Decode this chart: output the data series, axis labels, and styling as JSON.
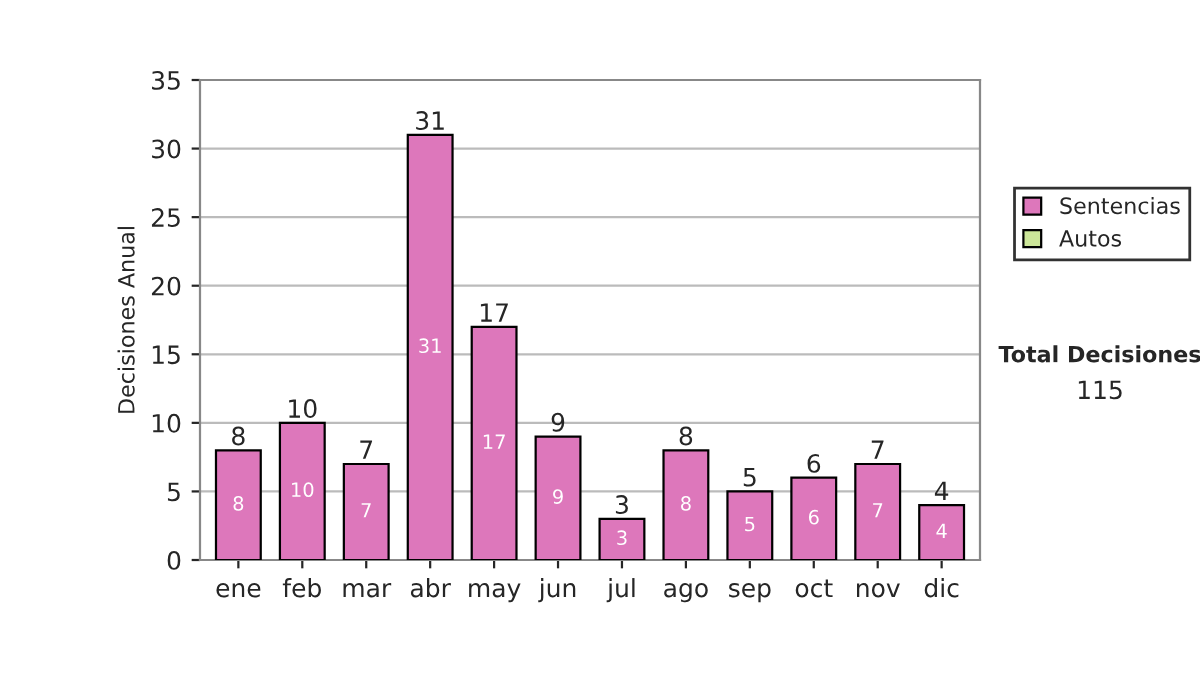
{
  "chart_data": {
    "type": "bar",
    "stacked": true,
    "ylabel": "Decisiones Anual",
    "categories": [
      "ene",
      "feb",
      "mar",
      "abr",
      "may",
      "jun",
      "jul",
      "ago",
      "sep",
      "oct",
      "nov",
      "dic"
    ],
    "series": [
      {
        "name": "Sentencias",
        "color": "#dd77bb",
        "values": [
          8,
          10,
          7,
          31,
          17,
          9,
          3,
          8,
          5,
          6,
          7,
          4
        ]
      },
      {
        "name": "Autos",
        "color": "#cce699",
        "values": [
          null,
          null,
          null,
          null,
          null,
          null,
          null,
          null,
          null,
          null,
          null,
          null
        ]
      }
    ],
    "totals": [
      "8",
      "10",
      "7",
      "31",
      "17",
      "9",
      "3",
      "8",
      "5",
      "6",
      "7",
      "4"
    ],
    "data_labels": true,
    "ylim": [
      0,
      35
    ],
    "yticks": [
      0,
      5,
      10,
      15,
      20,
      25,
      30,
      35
    ],
    "grid": "y",
    "legend": "right",
    "annotations": [
      "Total Decisiones",
      "115"
    ]
  }
}
